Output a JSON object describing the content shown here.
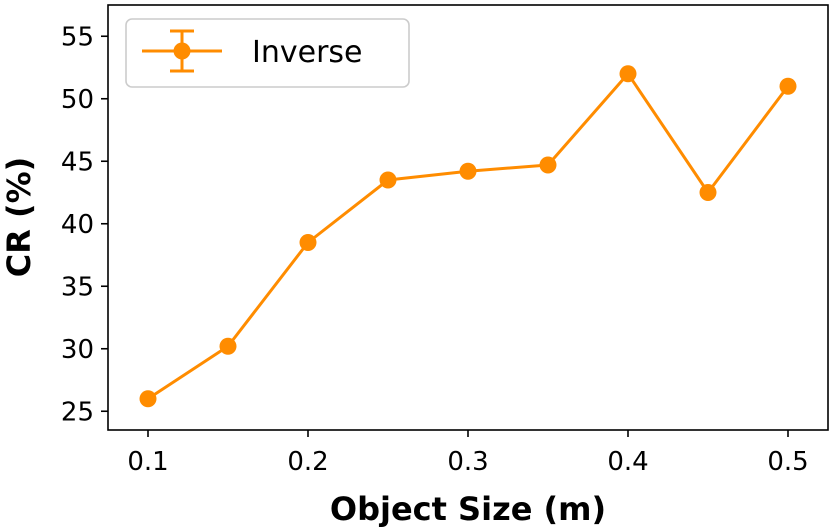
{
  "chart_data": {
    "type": "line",
    "title": "",
    "xlabel": "Object Size (m)",
    "ylabel": "CR (%)",
    "x": [
      0.1,
      0.15,
      0.2,
      0.25,
      0.3,
      0.35,
      0.4,
      0.45,
      0.5
    ],
    "series": [
      {
        "name": "Inverse",
        "color": "#ff8c00",
        "values": [
          26.0,
          30.2,
          38.5,
          43.5,
          44.2,
          44.7,
          52.0,
          42.5,
          51.0
        ]
      }
    ],
    "xlim": [
      0.075,
      0.525
    ],
    "ylim": [
      23.5,
      57.5
    ],
    "xticks": [
      "0.1",
      "0.2",
      "0.3",
      "0.4",
      "0.5"
    ],
    "yticks": [
      "25",
      "30",
      "35",
      "40",
      "45",
      "50",
      "55"
    ],
    "grid": false,
    "legend_position": "top-left"
  }
}
